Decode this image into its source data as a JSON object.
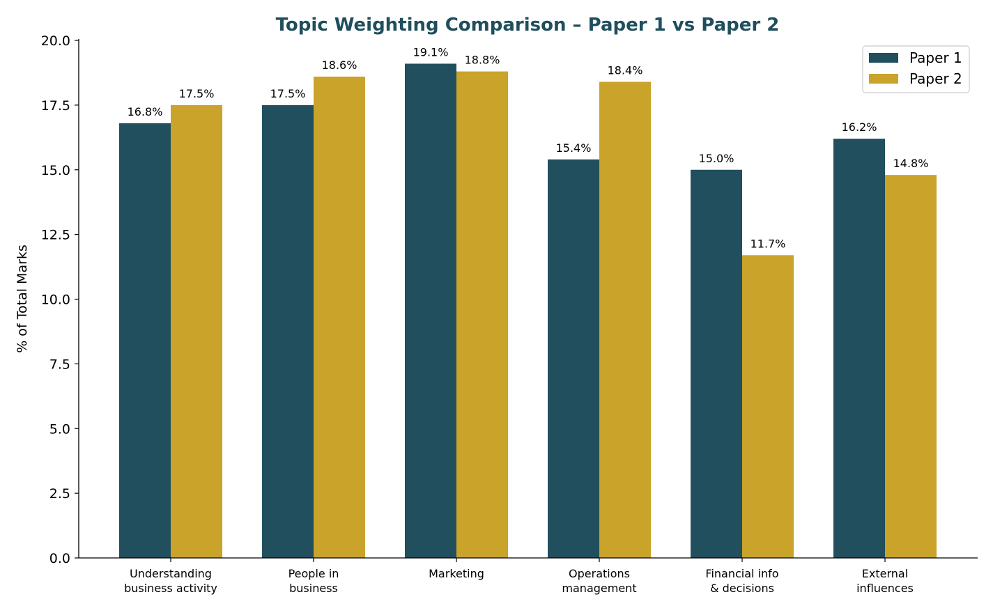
{
  "chart_data": {
    "type": "bar",
    "title": "Topic Weighting Comparison – Paper 1 vs Paper 2",
    "xlabel": "",
    "ylabel": "% of Total Marks",
    "ylim": [
      0,
      20
    ],
    "yticks": [
      "0.0",
      "2.5",
      "5.0",
      "7.5",
      "10.0",
      "12.5",
      "15.0",
      "17.5",
      "20.0"
    ],
    "categories": [
      [
        "Understanding",
        "business activity"
      ],
      [
        "People in",
        "business"
      ],
      [
        "Marketing"
      ],
      [
        "Operations",
        "management"
      ],
      [
        "Financial info",
        "& decisions"
      ],
      [
        "External",
        "influences"
      ]
    ],
    "series": [
      {
        "name": "Paper 1",
        "color": "#214f5e",
        "values": [
          16.8,
          17.5,
          19.1,
          15.4,
          15.0,
          16.2
        ],
        "labels": [
          "16.8%",
          "17.5%",
          "19.1%",
          "15.4%",
          "15.0%",
          "16.2%"
        ]
      },
      {
        "name": "Paper 2",
        "color": "#c9a32a",
        "values": [
          17.5,
          18.6,
          18.8,
          18.4,
          11.7,
          14.8
        ],
        "labels": [
          "17.5%",
          "18.6%",
          "18.8%",
          "18.4%",
          "11.7%",
          "14.8%"
        ]
      }
    ],
    "grid": false,
    "legend_position": "top-right",
    "title_color": "#1f4e5d"
  }
}
